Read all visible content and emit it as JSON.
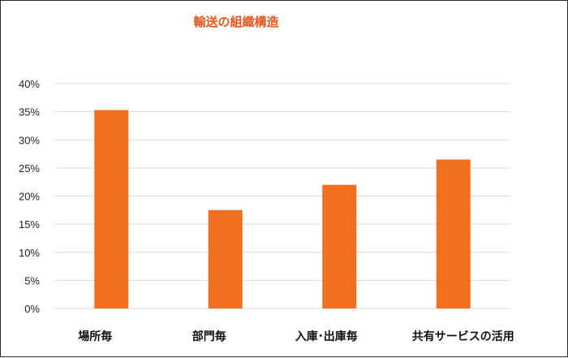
{
  "chart_data": {
    "type": "bar",
    "title": "輸送の組織構造",
    "categories": [
      "場所毎",
      "部門毎",
      "入庫･出庫毎",
      "共有サービスの活用"
    ],
    "values": [
      35.3,
      17.5,
      22.0,
      26.5
    ],
    "y_unit": "%",
    "ylim": [
      0,
      40
    ],
    "y_ticks": [
      "0%",
      "5%",
      "10%",
      "15%",
      "20%",
      "25%",
      "30%",
      "35%",
      "40%"
    ],
    "grid": true,
    "legend": "none",
    "colors": {
      "bar": "#f07020",
      "title": "#e8541c",
      "grid": "#d9d9d9"
    }
  }
}
